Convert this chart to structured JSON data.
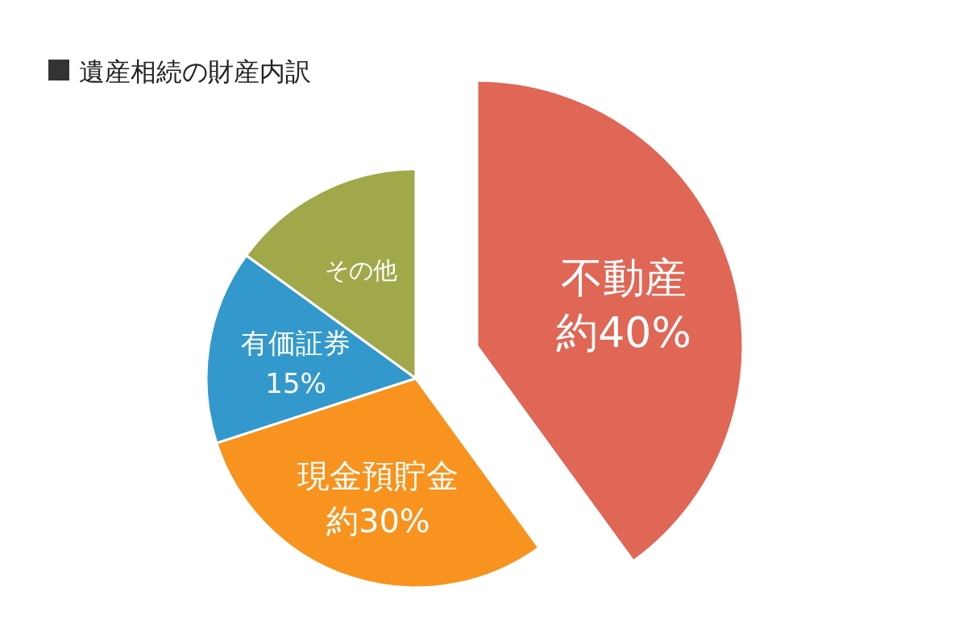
{
  "chart_data": {
    "type": "pie",
    "title": "遺産相続の財産内訳",
    "categories": [
      "不動産",
      "現金預貯金",
      "有価証券",
      "その他"
    ],
    "values": [
      40,
      30,
      15,
      15
    ],
    "value_labels": [
      "約40%",
      "約30%",
      "15%",
      null
    ],
    "colors": [
      "#e06655",
      "#f7931e",
      "#3399cc",
      "#a0a84a"
    ]
  }
}
